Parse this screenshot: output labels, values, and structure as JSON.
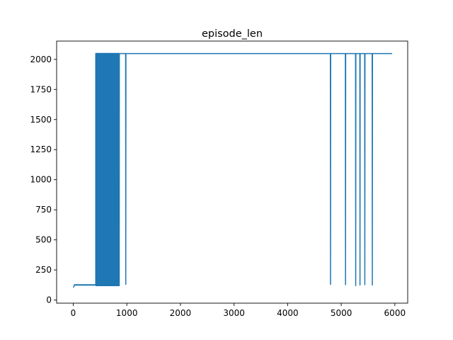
{
  "chart_data": {
    "type": "line",
    "title": "episode_len",
    "xlabel": "",
    "ylabel": "",
    "xlim": [
      -310,
      6240
    ],
    "ylim": [
      -26,
      2152
    ],
    "xticks": [
      0,
      1000,
      2000,
      3000,
      4000,
      5000,
      6000
    ],
    "yticks": [
      0,
      250,
      500,
      750,
      1000,
      1250,
      1500,
      1750,
      2000
    ],
    "x_tick_labels": [
      "0",
      "1000",
      "2000",
      "3000",
      "4000",
      "5000",
      "6000"
    ],
    "y_tick_labels": [
      "0",
      "250",
      "500",
      "750",
      "1000",
      "1250",
      "1500",
      "1750",
      "2000"
    ],
    "grid": false,
    "line_color": "#1f77b4",
    "series": [
      {
        "name": "",
        "segments": {
          "warmup": {
            "x_start": 0,
            "x_end": 420,
            "y_start": 75,
            "y_end": 125
          },
          "dense_oscillation": {
            "x_start": 420,
            "x_end": 860,
            "low": 120,
            "high": 2048
          },
          "plateau": {
            "x_start": 860,
            "x_end": 5950,
            "y": 2048
          },
          "dips": [
            {
              "x": 980,
              "y": 130
            },
            {
              "x": 4800,
              "y": 130
            },
            {
              "x": 5080,
              "y": 128
            },
            {
              "x": 5270,
              "y": 120
            },
            {
              "x": 5350,
              "y": 125
            },
            {
              "x": 5440,
              "y": 128
            },
            {
              "x": 5580,
              "y": 125
            }
          ]
        }
      }
    ]
  }
}
